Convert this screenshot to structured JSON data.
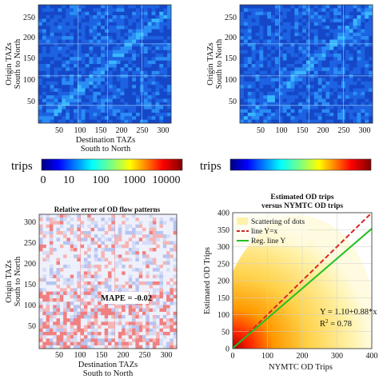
{
  "figure": {
    "panel_tl": {
      "ylabel_line1": "Origin TAZs",
      "ylabel_line2": "South to North",
      "xlabel_line1": "Destination TAZs",
      "xlabel_line2": "South to North",
      "yticks": [
        "250",
        "200",
        "150",
        "100",
        "50"
      ],
      "xticks": [
        "50",
        "100",
        "150",
        "200",
        "250",
        "300"
      ]
    },
    "panel_tr": {
      "ylabel_line1": "Origin TAZs",
      "ylabel_line2": "South to North",
      "yticks": [
        "250",
        "200",
        "150",
        "100",
        "50"
      ],
      "xticks": [
        "50",
        "100",
        "150",
        "200",
        "250",
        "300"
      ]
    },
    "colorbar_left": {
      "label": "trips",
      "ticks": [
        "0",
        "10",
        "100",
        "1000",
        "10000"
      ]
    },
    "colorbar_right": {
      "label": "trips"
    },
    "panel_bl": {
      "title": "Relative error of OD flow patterns",
      "ylabel_line1": "Origin TAZs",
      "ylabel_line2": "South to North",
      "xlabel_line1": "Destination TAZs",
      "xlabel_line2": "South to North",
      "yticks": [
        "300",
        "250",
        "200",
        "150",
        "100",
        "50"
      ],
      "xticks": [
        "50",
        "100",
        "150",
        "200",
        "250",
        "300"
      ],
      "annotation": "MAPE = -0.02"
    },
    "panel_br": {
      "title_line1": "Estimated OD trips",
      "title_line2": "versus NYMTC OD trips",
      "ylabel": "Estimated OD Trips",
      "xlabel": "NYMTC OD Trips",
      "legend": [
        "Scattering of dots",
        "line Y=x",
        "Reg. line Y"
      ],
      "equation": "Y = 1.10+0.88*x",
      "r2_label": "R",
      "r2_sup": "2",
      "r2_value": " = 0.78"
    }
  },
  "chart_data": [
    {
      "type": "heatmap",
      "ylabel": "Origin TAZs South to North",
      "xlabel": "Destination TAZs South to North",
      "xlim": [
        0,
        320
      ],
      "ylim": [
        0,
        280
      ],
      "colorscale": "log trips 0–10000 (jet)"
    },
    {
      "type": "heatmap",
      "ylabel": "Origin TAZs South to North",
      "xlim": [
        0,
        320
      ],
      "ylim": [
        0,
        280
      ],
      "colorscale": "log trips 0–10000 (jet)"
    },
    {
      "type": "heatmap",
      "title": "Relative error of OD flow patterns",
      "ylabel": "Origin TAZs South to North",
      "xlabel": "Destination TAZs South to North",
      "xlim": [
        0,
        320
      ],
      "ylim": [
        0,
        320
      ],
      "annotation": "MAPE = -0.02"
    },
    {
      "type": "scatter",
      "title": "Estimated OD trips versus NYMTC OD trips",
      "xlabel": "NYMTC OD Trips",
      "ylabel": "Estimated OD Trips",
      "xlim": [
        0,
        400
      ],
      "ylim": [
        0,
        400
      ],
      "xticks": [
        0,
        100,
        200,
        300,
        400
      ],
      "yticks": [
        0,
        50,
        100,
        150,
        200,
        250,
        300,
        350,
        400
      ],
      "series": [
        {
          "name": "Scattering of dots",
          "style": "density"
        },
        {
          "name": "line Y=x",
          "x": [
            0,
            400
          ],
          "y": [
            0,
            400
          ],
          "color": "#d62728",
          "dash": true
        },
        {
          "name": "Reg. line Y",
          "x": [
            0,
            400
          ],
          "y": [
            1.1,
            353.1
          ],
          "color": "#22c022"
        }
      ],
      "regression": {
        "intercept": 1.1,
        "slope": 0.88,
        "r2": 0.78
      },
      "legend_position": "top-left"
    }
  ]
}
